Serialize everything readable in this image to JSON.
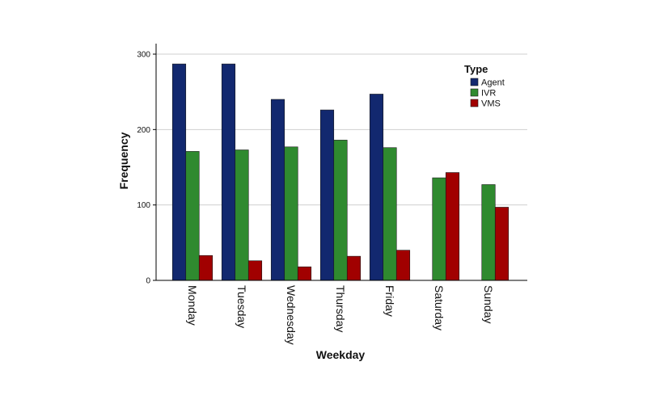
{
  "chart_data": {
    "type": "bar",
    "title": "",
    "xlabel": "Weekday",
    "ylabel": "Frequency",
    "ylim": [
      0,
      300
    ],
    "yticks": [
      0,
      100,
      200,
      300
    ],
    "grid": true,
    "legend": {
      "title": "Type",
      "placement": "top-right"
    },
    "categories": [
      "Monday",
      "Tuesday",
      "Wednesday",
      "Thursday",
      "Friday",
      "Saturday",
      "Sunday"
    ],
    "series": [
      {
        "name": "Agent",
        "color": "#12286f",
        "values": [
          287,
          287,
          240,
          226,
          247,
          null,
          null
        ]
      },
      {
        "name": "IVR",
        "color": "#2f8a2f",
        "values": [
          171,
          173,
          177,
          186,
          176,
          136,
          127
        ]
      },
      {
        "name": "VMS",
        "color": "#a10000",
        "values": [
          33,
          26,
          18,
          32,
          40,
          143,
          97
        ]
      }
    ]
  }
}
